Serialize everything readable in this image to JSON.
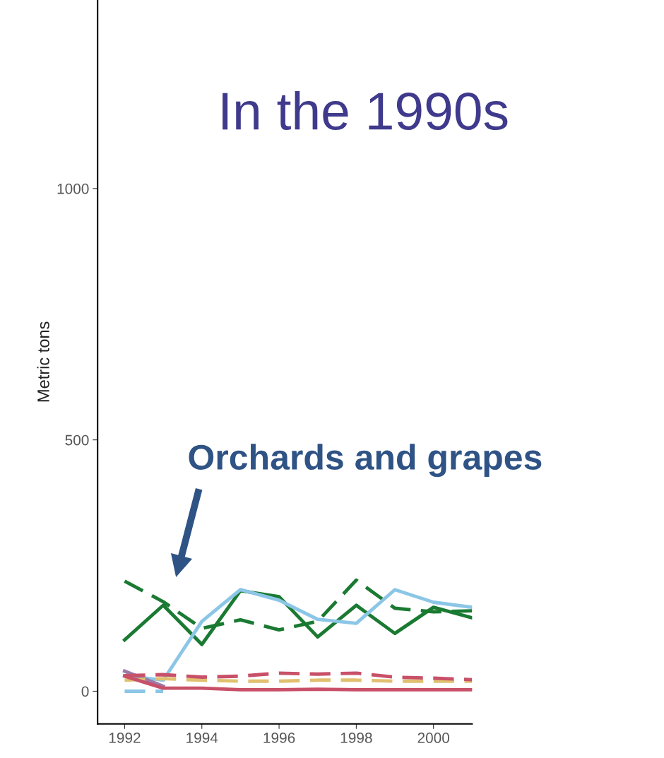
{
  "chart_data": {
    "type": "line",
    "title": "In the 1990s",
    "ylabel": "Metric tons",
    "x": [
      1992,
      1993,
      1994,
      1995,
      1996,
      1997,
      1998,
      1999,
      2000,
      2001
    ],
    "series": [
      {
        "color": "#1a7a32",
        "line_style": "solid",
        "values": [
          102,
          171,
          93,
          200,
          188,
          108,
          171,
          115,
          167,
          146
        ]
      },
      {
        "color": "#1a7a32",
        "line_style": "dashed",
        "values": [
          219,
          178,
          125,
          142,
          122,
          139,
          221,
          165,
          158,
          160
        ]
      },
      {
        "color": "#8cc6e6",
        "line_style": "solid",
        "values": [
          31,
          22,
          139,
          202,
          181,
          143,
          135,
          202,
          177,
          167
        ]
      },
      {
        "color": "#8cc6e6",
        "line_style": "dashed",
        "values": [
          0,
          0,
          null,
          null,
          null,
          null,
          null,
          null,
          null,
          null
        ]
      },
      {
        "color": "#9a7aa8",
        "line_style": "solid",
        "values": [
          40,
          10,
          null,
          null,
          null,
          null,
          null,
          null,
          null,
          null
        ]
      },
      {
        "color": "#e0c070",
        "line_style": "dashed",
        "values": [
          22,
          25,
          22,
          20,
          20,
          22,
          22,
          20,
          20,
          20
        ]
      },
      {
        "color": "#c85068",
        "line_style": "dashed",
        "values": [
          31,
          33,
          28,
          30,
          36,
          34,
          36,
          28,
          26,
          23
        ]
      },
      {
        "color": "#c85068",
        "line_style": "solid",
        "values": [
          30,
          6,
          6,
          3,
          3,
          4,
          3,
          3,
          3,
          3
        ]
      }
    ],
    "annotations": [
      "Orchards and grapes"
    ],
    "xlim": [
      1991.3,
      2001
    ],
    "ylim": [
      -65,
      1375
    ],
    "xticks": [
      1992,
      1994,
      1996,
      1998,
      2000
    ],
    "yticks": [
      0,
      500,
      1000
    ],
    "grid": false,
    "legend": false,
    "marker": "none"
  }
}
